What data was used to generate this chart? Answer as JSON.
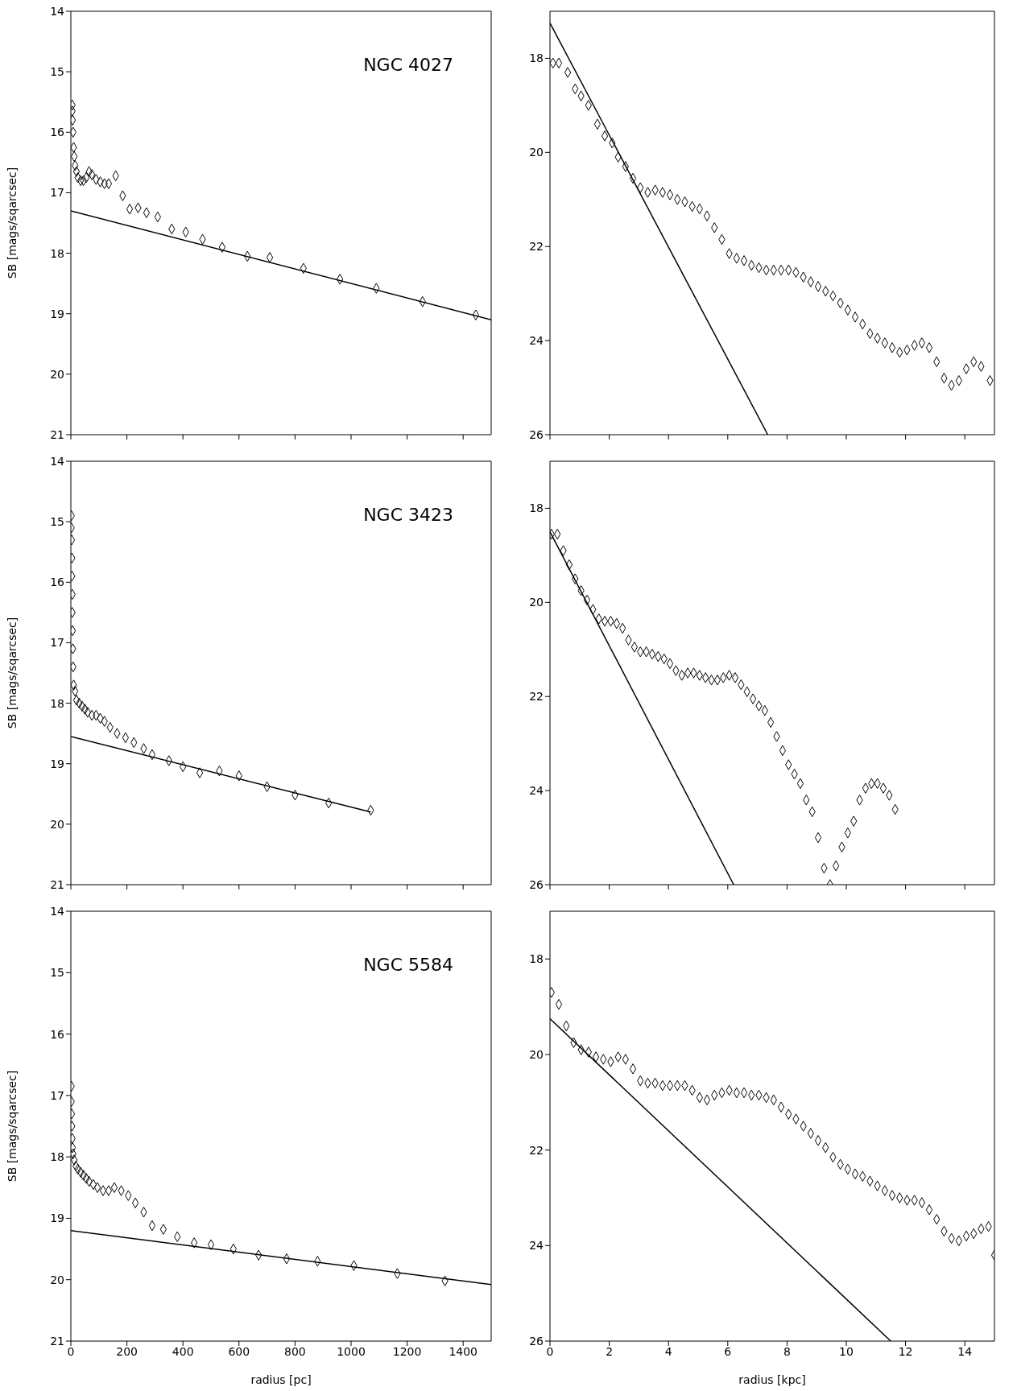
{
  "chart_data": [
    {
      "type": "scatter",
      "annotations": [
        "NGC 4027"
      ],
      "ylabel": "SB [mags/sqarcsec]",
      "xlim": [
        0,
        1500
      ],
      "xticks": [
        0,
        200,
        400,
        600,
        800,
        1000,
        1200,
        1400
      ],
      "ylim": [
        21,
        14
      ],
      "yticks": [
        14,
        15,
        16,
        17,
        18,
        19,
        20,
        21
      ],
      "tick_labels": "y",
      "series": [
        {
          "type": "scatter",
          "marker": "diamond",
          "color": "#000000",
          "x": [
            5,
            5,
            6,
            8,
            10,
            12,
            15,
            20,
            25,
            35,
            45,
            55,
            65,
            75,
            90,
            105,
            120,
            135,
            160,
            185,
            210,
            240,
            270,
            310,
            360,
            410,
            470,
            540,
            630,
            710,
            830,
            960,
            1090,
            1255,
            1445
          ],
          "values": [
            15.55,
            15.65,
            15.8,
            16.0,
            16.25,
            16.4,
            16.55,
            16.65,
            16.75,
            16.8,
            16.8,
            16.75,
            16.65,
            16.7,
            16.78,
            16.82,
            16.85,
            16.85,
            16.72,
            17.05,
            17.27,
            17.25,
            17.33,
            17.4,
            17.6,
            17.65,
            17.77,
            17.9,
            18.05,
            18.07,
            18.25,
            18.43,
            18.58,
            18.8,
            19.02
          ]
        },
        {
          "type": "line",
          "marker": "none",
          "line_style": "solid",
          "color": "#000000",
          "x": [
            0,
            1500
          ],
          "values": [
            17.3,
            19.1
          ]
        }
      ]
    },
    {
      "type": "scatter",
      "xlim": [
        0,
        15
      ],
      "xticks": [
        0,
        2,
        4,
        6,
        8,
        10,
        12,
        14
      ],
      "ylim": [
        26,
        17
      ],
      "yticks": [
        18,
        20,
        22,
        24,
        26
      ],
      "tick_labels": "y",
      "series": [
        {
          "type": "scatter",
          "marker": "diamond",
          "color": "#000000",
          "x": [
            0.1,
            0.3,
            0.6,
            0.85,
            1.05,
            1.3,
            1.6,
            1.85,
            2.1,
            2.3,
            2.55,
            2.8,
            3.05,
            3.3,
            3.55,
            3.8,
            4.05,
            4.3,
            4.55,
            4.8,
            5.05,
            5.3,
            5.55,
            5.8,
            6.05,
            6.3,
            6.55,
            6.8,
            7.05,
            7.3,
            7.55,
            7.8,
            8.05,
            8.3,
            8.55,
            8.8,
            9.05,
            9.3,
            9.55,
            9.8,
            10.05,
            10.3,
            10.55,
            10.8,
            11.05,
            11.3,
            11.55,
            11.8,
            12.05,
            12.3,
            12.55,
            12.8,
            13.05,
            13.3,
            13.55,
            13.8,
            14.05,
            14.3,
            14.55,
            14.85
          ],
          "values": [
            18.1,
            18.1,
            18.3,
            18.65,
            18.8,
            19.0,
            19.4,
            19.65,
            19.8,
            20.1,
            20.3,
            20.55,
            20.75,
            20.85,
            20.8,
            20.85,
            20.9,
            21.0,
            21.05,
            21.15,
            21.2,
            21.35,
            21.6,
            21.85,
            22.15,
            22.25,
            22.3,
            22.4,
            22.45,
            22.5,
            22.5,
            22.5,
            22.5,
            22.55,
            22.65,
            22.75,
            22.85,
            22.95,
            23.05,
            23.2,
            23.35,
            23.5,
            23.65,
            23.85,
            23.95,
            24.05,
            24.15,
            24.25,
            24.2,
            24.1,
            24.05,
            24.15,
            24.45,
            24.8,
            24.95,
            24.85,
            24.6,
            24.45,
            24.55,
            24.85
          ]
        },
        {
          "type": "line",
          "marker": "none",
          "line_style": "solid",
          "color": "#000000",
          "x": [
            0,
            7.35
          ],
          "values": [
            17.25,
            26
          ]
        }
      ]
    },
    {
      "type": "scatter",
      "annotations": [
        "NGC 3423"
      ],
      "ylabel": "SB [mags/sqarcsec]",
      "xlim": [
        0,
        1500
      ],
      "xticks": [
        0,
        200,
        400,
        600,
        800,
        1000,
        1200,
        1400
      ],
      "ylim": [
        21,
        14
      ],
      "yticks": [
        14,
        15,
        16,
        17,
        18,
        19,
        20,
        21
      ],
      "tick_labels": "y",
      "series": [
        {
          "type": "scatter",
          "marker": "diamond",
          "color": "#000000",
          "x": [
            2,
            2,
            3,
            4,
            4,
            5,
            5,
            6,
            7,
            8,
            10,
            15,
            20,
            30,
            40,
            50,
            60,
            75,
            90,
            105,
            120,
            140,
            165,
            195,
            225,
            260,
            290,
            350,
            400,
            460,
            530,
            600,
            700,
            800,
            920,
            1070
          ],
          "values": [
            14.9,
            15.1,
            15.3,
            15.6,
            15.9,
            16.2,
            16.5,
            16.8,
            17.1,
            17.4,
            17.7,
            17.8,
            17.95,
            18.0,
            18.05,
            18.1,
            18.15,
            18.2,
            18.2,
            18.25,
            18.3,
            18.4,
            18.5,
            18.57,
            18.65,
            18.75,
            18.85,
            18.95,
            19.05,
            19.15,
            19.12,
            19.2,
            19.38,
            19.52,
            19.65,
            19.77
          ]
        },
        {
          "type": "line",
          "marker": "none",
          "line_style": "solid",
          "color": "#000000",
          "x": [
            0,
            1070
          ],
          "values": [
            18.55,
            19.8
          ]
        }
      ]
    },
    {
      "type": "scatter",
      "xlim": [
        0,
        15
      ],
      "xticks": [
        0,
        2,
        4,
        6,
        8,
        10,
        12,
        14
      ],
      "ylim": [
        26,
        17
      ],
      "yticks": [
        18,
        20,
        22,
        24,
        26
      ],
      "tick_labels": "y",
      "series": [
        {
          "type": "scatter",
          "marker": "diamond",
          "color": "#000000",
          "x": [
            0.05,
            0.25,
            0.45,
            0.65,
            0.85,
            1.05,
            1.25,
            1.45,
            1.65,
            1.85,
            2.05,
            2.25,
            2.45,
            2.65,
            2.85,
            3.05,
            3.25,
            3.45,
            3.65,
            3.85,
            4.05,
            4.25,
            4.45,
            4.65,
            4.85,
            5.05,
            5.25,
            5.45,
            5.65,
            5.85,
            6.05,
            6.25,
            6.45,
            6.65,
            6.85,
            7.05,
            7.25,
            7.45,
            7.65,
            7.85,
            8.05,
            8.25,
            8.45,
            8.65,
            8.85,
            9.05,
            9.25,
            9.45,
            9.65,
            9.85,
            10.05,
            10.25,
            10.45,
            10.65,
            10.85,
            11.05,
            11.25,
            11.45,
            11.65
          ],
          "values": [
            18.55,
            18.55,
            18.9,
            19.2,
            19.5,
            19.75,
            19.95,
            20.15,
            20.35,
            20.4,
            20.4,
            20.45,
            20.55,
            20.8,
            20.95,
            21.05,
            21.05,
            21.1,
            21.15,
            21.2,
            21.3,
            21.45,
            21.55,
            21.5,
            21.5,
            21.55,
            21.6,
            21.65,
            21.65,
            21.6,
            21.55,
            21.6,
            21.75,
            21.9,
            22.05,
            22.2,
            22.3,
            22.55,
            22.85,
            23.15,
            23.45,
            23.65,
            23.85,
            24.2,
            24.45,
            25.0,
            25.65,
            26.0,
            25.6,
            25.2,
            24.9,
            24.65,
            24.2,
            23.95,
            23.85,
            23.85,
            23.95,
            24.1,
            24.4
          ]
        },
        {
          "type": "line",
          "marker": "none",
          "line_style": "solid",
          "color": "#000000",
          "x": [
            0,
            6.2
          ],
          "values": [
            18.5,
            26
          ]
        }
      ]
    },
    {
      "type": "scatter",
      "annotations": [
        "NGC 5584"
      ],
      "ylabel": "SB [mags/sqarcsec]",
      "xlabel": "radius [pc]",
      "xlim": [
        0,
        1500
      ],
      "xticks": [
        0,
        200,
        400,
        600,
        800,
        1000,
        1200,
        1400
      ],
      "ylim": [
        21,
        14
      ],
      "yticks": [
        14,
        15,
        16,
        17,
        18,
        19,
        20,
        21
      ],
      "series": [
        {
          "type": "scatter",
          "marker": "diamond",
          "color": "#000000",
          "x": [
            2,
            2,
            3,
            4,
            5,
            6,
            8,
            12,
            18,
            25,
            35,
            45,
            55,
            65,
            80,
            95,
            115,
            135,
            155,
            180,
            205,
            230,
            260,
            290,
            330,
            380,
            440,
            500,
            580,
            670,
            770,
            880,
            1010,
            1165,
            1335
          ],
          "values": [
            16.85,
            17.1,
            17.3,
            17.5,
            17.7,
            17.85,
            17.95,
            18.05,
            18.15,
            18.2,
            18.25,
            18.3,
            18.35,
            18.4,
            18.45,
            18.5,
            18.55,
            18.55,
            18.5,
            18.55,
            18.63,
            18.75,
            18.9,
            19.12,
            19.18,
            19.3,
            19.4,
            19.43,
            19.5,
            19.6,
            19.66,
            19.7,
            19.77,
            19.9,
            20.02
          ]
        },
        {
          "type": "line",
          "marker": "none",
          "line_style": "solid",
          "color": "#000000",
          "x": [
            0,
            1500
          ],
          "values": [
            19.2,
            20.08
          ]
        }
      ]
    },
    {
      "type": "scatter",
      "xlabel": "radius [kpc]",
      "xlim": [
        0,
        15
      ],
      "xticks": [
        0,
        2,
        4,
        6,
        8,
        10,
        12,
        14
      ],
      "ylim": [
        26,
        17
      ],
      "yticks": [
        18,
        20,
        22,
        24,
        26
      ],
      "series": [
        {
          "type": "scatter",
          "marker": "diamond",
          "color": "#000000",
          "x": [
            0.05,
            0.3,
            0.55,
            0.8,
            1.05,
            1.3,
            1.55,
            1.8,
            2.05,
            2.3,
            2.55,
            2.8,
            3.05,
            3.3,
            3.55,
            3.8,
            4.05,
            4.3,
            4.55,
            4.8,
            5.05,
            5.3,
            5.55,
            5.8,
            6.05,
            6.3,
            6.55,
            6.8,
            7.05,
            7.3,
            7.55,
            7.8,
            8.05,
            8.3,
            8.55,
            8.8,
            9.05,
            9.3,
            9.55,
            9.8,
            10.05,
            10.3,
            10.55,
            10.8,
            11.05,
            11.3,
            11.55,
            11.8,
            12.05,
            12.3,
            12.55,
            12.8,
            13.05,
            13.3,
            13.55,
            13.8,
            14.05,
            14.3,
            14.55,
            14.8,
            15.0
          ],
          "values": [
            18.7,
            18.95,
            19.4,
            19.75,
            19.9,
            19.95,
            20.05,
            20.1,
            20.15,
            20.05,
            20.1,
            20.3,
            20.55,
            20.6,
            20.6,
            20.65,
            20.65,
            20.65,
            20.65,
            20.75,
            20.9,
            20.95,
            20.85,
            20.8,
            20.75,
            20.8,
            20.8,
            20.85,
            20.85,
            20.9,
            20.95,
            21.1,
            21.25,
            21.35,
            21.5,
            21.65,
            21.8,
            21.95,
            22.15,
            22.3,
            22.4,
            22.5,
            22.55,
            22.65,
            22.75,
            22.85,
            22.95,
            23.0,
            23.05,
            23.05,
            23.1,
            23.25,
            23.45,
            23.7,
            23.85,
            23.9,
            23.8,
            23.75,
            23.65,
            23.6,
            24.2
          ]
        },
        {
          "type": "line",
          "marker": "none",
          "line_style": "solid",
          "color": "#000000",
          "x": [
            0,
            11.5
          ],
          "values": [
            19.25,
            26
          ]
        }
      ]
    }
  ]
}
